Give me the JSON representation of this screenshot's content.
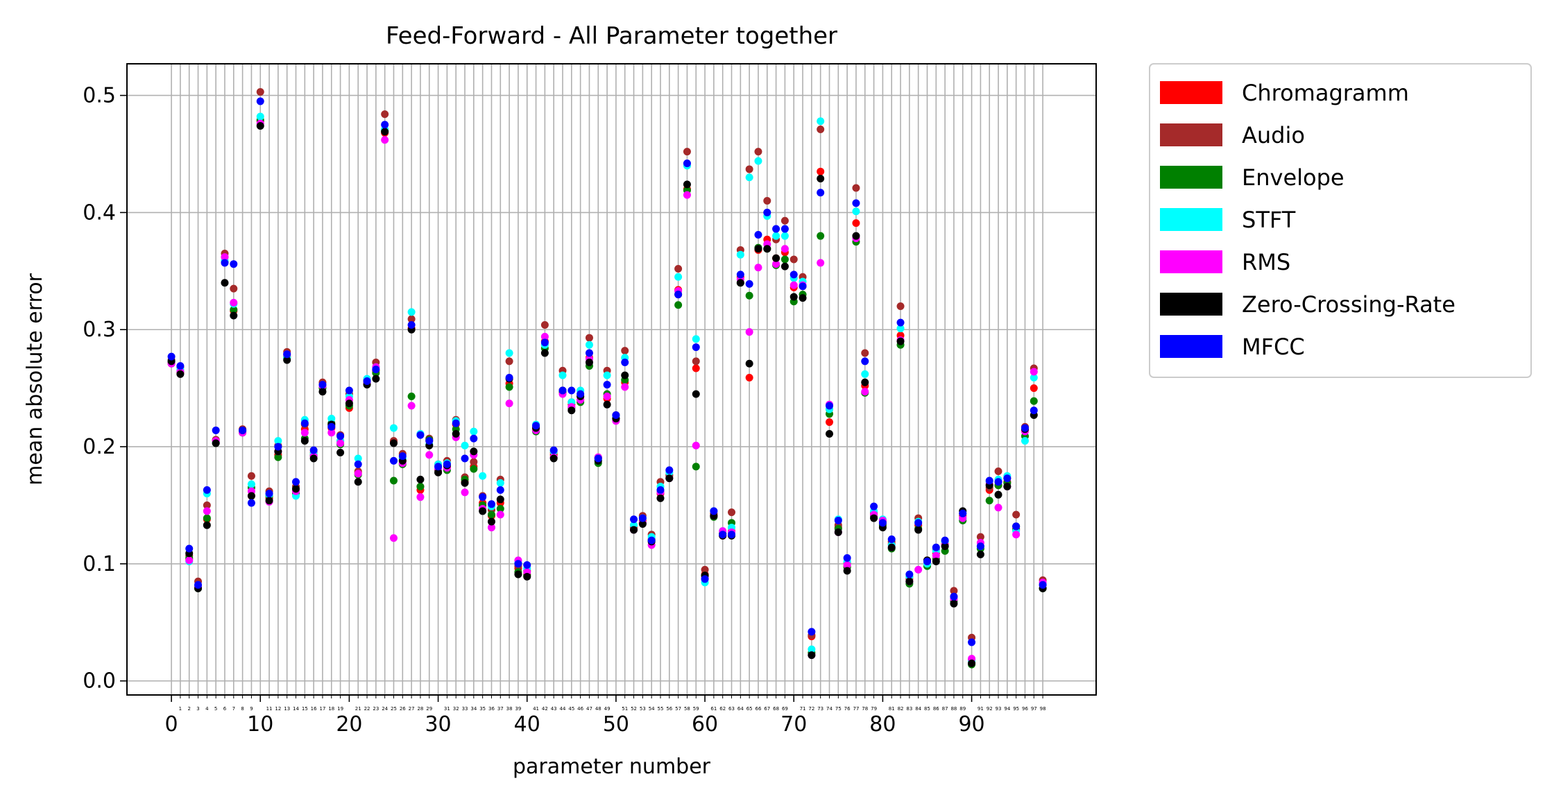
{
  "chart_data": {
    "type": "scatter",
    "title": "Feed-Forward - All Parameter together",
    "xlabel": "parameter number",
    "ylabel": "mean absolute error",
    "xlim": [
      -5,
      104
    ],
    "ylim": [
      -0.012,
      0.527
    ],
    "x_major_ticks": [
      0,
      10,
      20,
      30,
      40,
      50,
      60,
      70,
      80,
      90
    ],
    "y_major_ticks": [
      0.0,
      0.1,
      0.2,
      0.3,
      0.4,
      0.5
    ],
    "y_tick_labels": [
      "0.0",
      "0.1",
      "0.2",
      "0.3",
      "0.4",
      "0.5"
    ],
    "x_minor_ticks": [
      1,
      2,
      3,
      4,
      5,
      6,
      7,
      8,
      9,
      11,
      12,
      13,
      14,
      15,
      16,
      17,
      18,
      19,
      21,
      22,
      23,
      24,
      25,
      26,
      27,
      28,
      29,
      31,
      32,
      33,
      34,
      35,
      36,
      37,
      38,
      39,
      41,
      42,
      43,
      44,
      45,
      46,
      47,
      48,
      49,
      51,
      52,
      53,
      54,
      55,
      56,
      57,
      58,
      59,
      61,
      62,
      63,
      64,
      65,
      66,
      67,
      68,
      69,
      71,
      72,
      73,
      74,
      75,
      76,
      77,
      78,
      79,
      81,
      82,
      83,
      84,
      85,
      86,
      87,
      88,
      89,
      91,
      92,
      93,
      94,
      95,
      96,
      97,
      98
    ],
    "grid": true,
    "legend_position": "outside right",
    "x": [
      0,
      1,
      2,
      3,
      4,
      5,
      6,
      7,
      8,
      9,
      10,
      11,
      12,
      13,
      14,
      15,
      16,
      17,
      18,
      19,
      20,
      21,
      22,
      23,
      24,
      25,
      26,
      27,
      28,
      29,
      30,
      31,
      32,
      33,
      34,
      35,
      36,
      37,
      38,
      39,
      40,
      41,
      42,
      43,
      44,
      45,
      46,
      47,
      48,
      49,
      50,
      51,
      52,
      53,
      54,
      55,
      56,
      57,
      58,
      59,
      60,
      61,
      62,
      63,
      64,
      65,
      66,
      67,
      68,
      69,
      70,
      71,
      72,
      73,
      74,
      75,
      76,
      77,
      78,
      79,
      80,
      81,
      82,
      83,
      84,
      85,
      86,
      87,
      88,
      89,
      90,
      91,
      92,
      93,
      94,
      95,
      96,
      97,
      98
    ],
    "series": [
      {
        "name": "Chromagramm",
        "color": "#ff0000",
        "values": [
          0.272,
          0.263,
          0.104,
          0.081,
          0.138,
          0.205,
          0.362,
          0.316,
          0.213,
          0.158,
          0.478,
          0.156,
          0.193,
          0.277,
          0.162,
          0.215,
          0.193,
          0.251,
          0.216,
          0.205,
          0.233,
          0.178,
          0.255,
          0.265,
          0.468,
          0.204,
          0.188,
          0.301,
          0.163,
          0.205,
          0.18,
          0.183,
          0.219,
          0.17,
          0.183,
          0.152,
          0.141,
          0.152,
          0.254,
          0.096,
          0.091,
          0.215,
          0.29,
          0.193,
          0.246,
          0.236,
          0.24,
          0.276,
          0.19,
          0.241,
          0.224,
          0.255,
          0.131,
          0.137,
          0.121,
          0.16,
          0.175,
          0.334,
          0.42,
          0.267,
          0.091,
          0.141,
          0.124,
          0.128,
          0.345,
          0.259,
          0.368,
          0.377,
          0.361,
          0.366,
          0.336,
          0.337,
          0.038,
          0.435,
          0.221,
          0.131,
          0.098,
          0.391,
          0.252,
          0.143,
          0.134,
          0.117,
          0.295,
          0.087,
          0.133,
          0.101,
          0.109,
          0.117,
          0.072,
          0.141,
          0.018,
          0.115,
          0.163,
          0.167,
          0.17,
          0.13,
          0.214,
          0.25,
          0.082
        ]
      },
      {
        "name": "Audio",
        "color": "#a52a2a",
        "values": [
          0.274,
          0.268,
          0.107,
          0.085,
          0.15,
          0.206,
          0.365,
          0.335,
          0.215,
          0.175,
          0.503,
          0.162,
          0.201,
          0.281,
          0.166,
          0.219,
          0.195,
          0.255,
          0.218,
          0.21,
          0.245,
          0.179,
          0.257,
          0.272,
          0.484,
          0.205,
          0.194,
          0.309,
          0.166,
          0.207,
          0.185,
          0.188,
          0.223,
          0.174,
          0.187,
          0.158,
          0.146,
          0.172,
          0.273,
          0.098,
          0.094,
          0.217,
          0.304,
          0.195,
          0.265,
          0.238,
          0.243,
          0.293,
          0.191,
          0.265,
          0.227,
          0.282,
          0.133,
          0.141,
          0.125,
          0.17,
          0.176,
          0.352,
          0.452,
          0.273,
          0.095,
          0.143,
          0.126,
          0.144,
          0.368,
          0.437,
          0.452,
          0.41,
          0.377,
          0.393,
          0.36,
          0.345,
          0.039,
          0.471,
          0.232,
          0.133,
          0.101,
          0.421,
          0.28,
          0.144,
          0.136,
          0.119,
          0.32,
          0.089,
          0.139,
          0.103,
          0.112,
          0.119,
          0.077,
          0.143,
          0.037,
          0.123,
          0.165,
          0.179,
          0.173,
          0.142,
          0.217,
          0.267,
          0.086
        ]
      },
      {
        "name": "Envelope",
        "color": "#008000",
        "values": [
          0.271,
          0.264,
          0.105,
          0.079,
          0.139,
          0.203,
          0.358,
          0.317,
          0.212,
          0.165,
          0.479,
          0.158,
          0.191,
          0.276,
          0.16,
          0.207,
          0.192,
          0.25,
          0.22,
          0.202,
          0.235,
          0.176,
          0.254,
          0.263,
          0.47,
          0.171,
          0.185,
          0.243,
          0.166,
          0.206,
          0.18,
          0.18,
          0.215,
          0.172,
          0.181,
          0.15,
          0.142,
          0.147,
          0.251,
          0.093,
          0.09,
          0.213,
          0.284,
          0.191,
          0.247,
          0.233,
          0.238,
          0.269,
          0.186,
          0.245,
          0.224,
          0.257,
          0.129,
          0.135,
          0.12,
          0.161,
          0.173,
          0.321,
          0.419,
          0.183,
          0.09,
          0.14,
          0.126,
          0.135,
          0.34,
          0.329,
          0.37,
          0.369,
          0.355,
          0.36,
          0.324,
          0.33,
          0.024,
          0.38,
          0.228,
          0.13,
          0.097,
          0.375,
          0.246,
          0.141,
          0.133,
          0.113,
          0.287,
          0.083,
          0.13,
          0.098,
          0.104,
          0.111,
          0.068,
          0.137,
          0.014,
          0.113,
          0.154,
          0.167,
          0.169,
          0.129,
          0.209,
          0.239,
          0.079
        ]
      },
      {
        "name": "STFT",
        "color": "#00ffff",
        "values": [
          0.273,
          0.266,
          0.102,
          0.081,
          0.16,
          0.204,
          0.359,
          0.322,
          0.213,
          0.168,
          0.482,
          0.159,
          0.205,
          0.276,
          0.158,
          0.223,
          0.194,
          0.252,
          0.224,
          0.205,
          0.243,
          0.19,
          0.258,
          0.268,
          0.471,
          0.216,
          0.19,
          0.315,
          0.211,
          0.202,
          0.185,
          0.186,
          0.222,
          0.201,
          0.213,
          0.175,
          0.149,
          0.169,
          0.28,
          0.101,
          0.096,
          0.219,
          0.287,
          0.196,
          0.261,
          0.238,
          0.248,
          0.287,
          0.189,
          0.261,
          0.226,
          0.276,
          0.133,
          0.139,
          0.123,
          0.166,
          0.178,
          0.345,
          0.44,
          0.292,
          0.084,
          0.145,
          0.128,
          0.131,
          0.364,
          0.43,
          0.444,
          0.397,
          0.38,
          0.38,
          0.344,
          0.341,
          0.027,
          0.478,
          0.232,
          0.138,
          0.102,
          0.401,
          0.262,
          0.145,
          0.138,
          0.116,
          0.301,
          0.089,
          0.136,
          0.1,
          0.111,
          0.119,
          0.071,
          0.139,
          0.017,
          0.115,
          0.17,
          0.172,
          0.175,
          0.128,
          0.205,
          0.259,
          0.083
        ]
      },
      {
        "name": "RMS",
        "color": "#ff00ff",
        "values": [
          0.271,
          0.264,
          0.103,
          0.08,
          0.145,
          0.205,
          0.362,
          0.323,
          0.212,
          0.162,
          0.476,
          0.153,
          0.196,
          0.279,
          0.162,
          0.212,
          0.192,
          0.252,
          0.212,
          0.203,
          0.24,
          0.177,
          0.254,
          0.268,
          0.462,
          0.122,
          0.186,
          0.235,
          0.157,
          0.193,
          0.181,
          0.182,
          0.208,
          0.161,
          0.193,
          0.147,
          0.131,
          0.142,
          0.237,
          0.103,
          0.093,
          0.214,
          0.294,
          0.191,
          0.245,
          0.234,
          0.24,
          0.275,
          0.191,
          0.243,
          0.222,
          0.251,
          0.129,
          0.135,
          0.116,
          0.161,
          0.173,
          0.333,
          0.415,
          0.201,
          0.088,
          0.141,
          0.128,
          0.127,
          0.343,
          0.298,
          0.353,
          0.373,
          0.356,
          0.369,
          0.338,
          0.338,
          0.022,
          0.357,
          0.236,
          0.127,
          0.099,
          0.378,
          0.247,
          0.142,
          0.137,
          0.114,
          0.291,
          0.085,
          0.095,
          0.102,
          0.107,
          0.116,
          0.07,
          0.139,
          0.019,
          0.118,
          0.168,
          0.148,
          0.166,
          0.125,
          0.213,
          0.264,
          0.084
        ]
      },
      {
        "name": "Zero-Crossing-Rate",
        "color": "#000000",
        "values": [
          0.273,
          0.262,
          0.109,
          0.079,
          0.133,
          0.203,
          0.34,
          0.312,
          0.214,
          0.158,
          0.474,
          0.154,
          0.196,
          0.274,
          0.164,
          0.205,
          0.19,
          0.247,
          0.219,
          0.195,
          0.237,
          0.17,
          0.253,
          0.258,
          0.469,
          0.203,
          0.188,
          0.3,
          0.172,
          0.201,
          0.178,
          0.184,
          0.211,
          0.169,
          0.196,
          0.145,
          0.136,
          0.155,
          0.258,
          0.091,
          0.089,
          0.216,
          0.28,
          0.19,
          0.248,
          0.231,
          0.243,
          0.272,
          0.188,
          0.236,
          0.224,
          0.261,
          0.129,
          0.134,
          0.119,
          0.156,
          0.173,
          0.33,
          0.424,
          0.245,
          0.09,
          0.141,
          0.124,
          0.124,
          0.34,
          0.271,
          0.369,
          0.369,
          0.361,
          0.354,
          0.328,
          0.327,
          0.022,
          0.429,
          0.211,
          0.127,
          0.094,
          0.38,
          0.255,
          0.139,
          0.131,
          0.114,
          0.29,
          0.085,
          0.129,
          0.103,
          0.102,
          0.115,
          0.066,
          0.145,
          0.015,
          0.108,
          0.167,
          0.159,
          0.166,
          0.132,
          0.215,
          0.227,
          0.079
        ]
      },
      {
        "name": "MFCC",
        "color": "#0000ff",
        "values": [
          0.277,
          0.269,
          0.113,
          0.082,
          0.163,
          0.214,
          0.357,
          0.356,
          0.214,
          0.152,
          0.495,
          0.16,
          0.2,
          0.279,
          0.17,
          0.22,
          0.197,
          0.253,
          0.217,
          0.209,
          0.248,
          0.185,
          0.256,
          0.266,
          0.475,
          0.188,
          0.192,
          0.304,
          0.21,
          0.205,
          0.183,
          0.185,
          0.22,
          0.19,
          0.207,
          0.157,
          0.151,
          0.163,
          0.259,
          0.1,
          0.099,
          0.218,
          0.289,
          0.197,
          0.248,
          0.248,
          0.245,
          0.28,
          0.19,
          0.253,
          0.227,
          0.272,
          0.138,
          0.139,
          0.12,
          0.163,
          0.18,
          0.33,
          0.442,
          0.285,
          0.087,
          0.145,
          0.125,
          0.125,
          0.347,
          0.339,
          0.381,
          0.4,
          0.386,
          0.386,
          0.347,
          0.337,
          0.042,
          0.417,
          0.235,
          0.137,
          0.105,
          0.408,
          0.273,
          0.149,
          0.135,
          0.121,
          0.306,
          0.091,
          0.135,
          0.102,
          0.114,
          0.12,
          0.072,
          0.143,
          0.033,
          0.115,
          0.171,
          0.17,
          0.173,
          0.132,
          0.216,
          0.231,
          0.082
        ]
      }
    ]
  }
}
